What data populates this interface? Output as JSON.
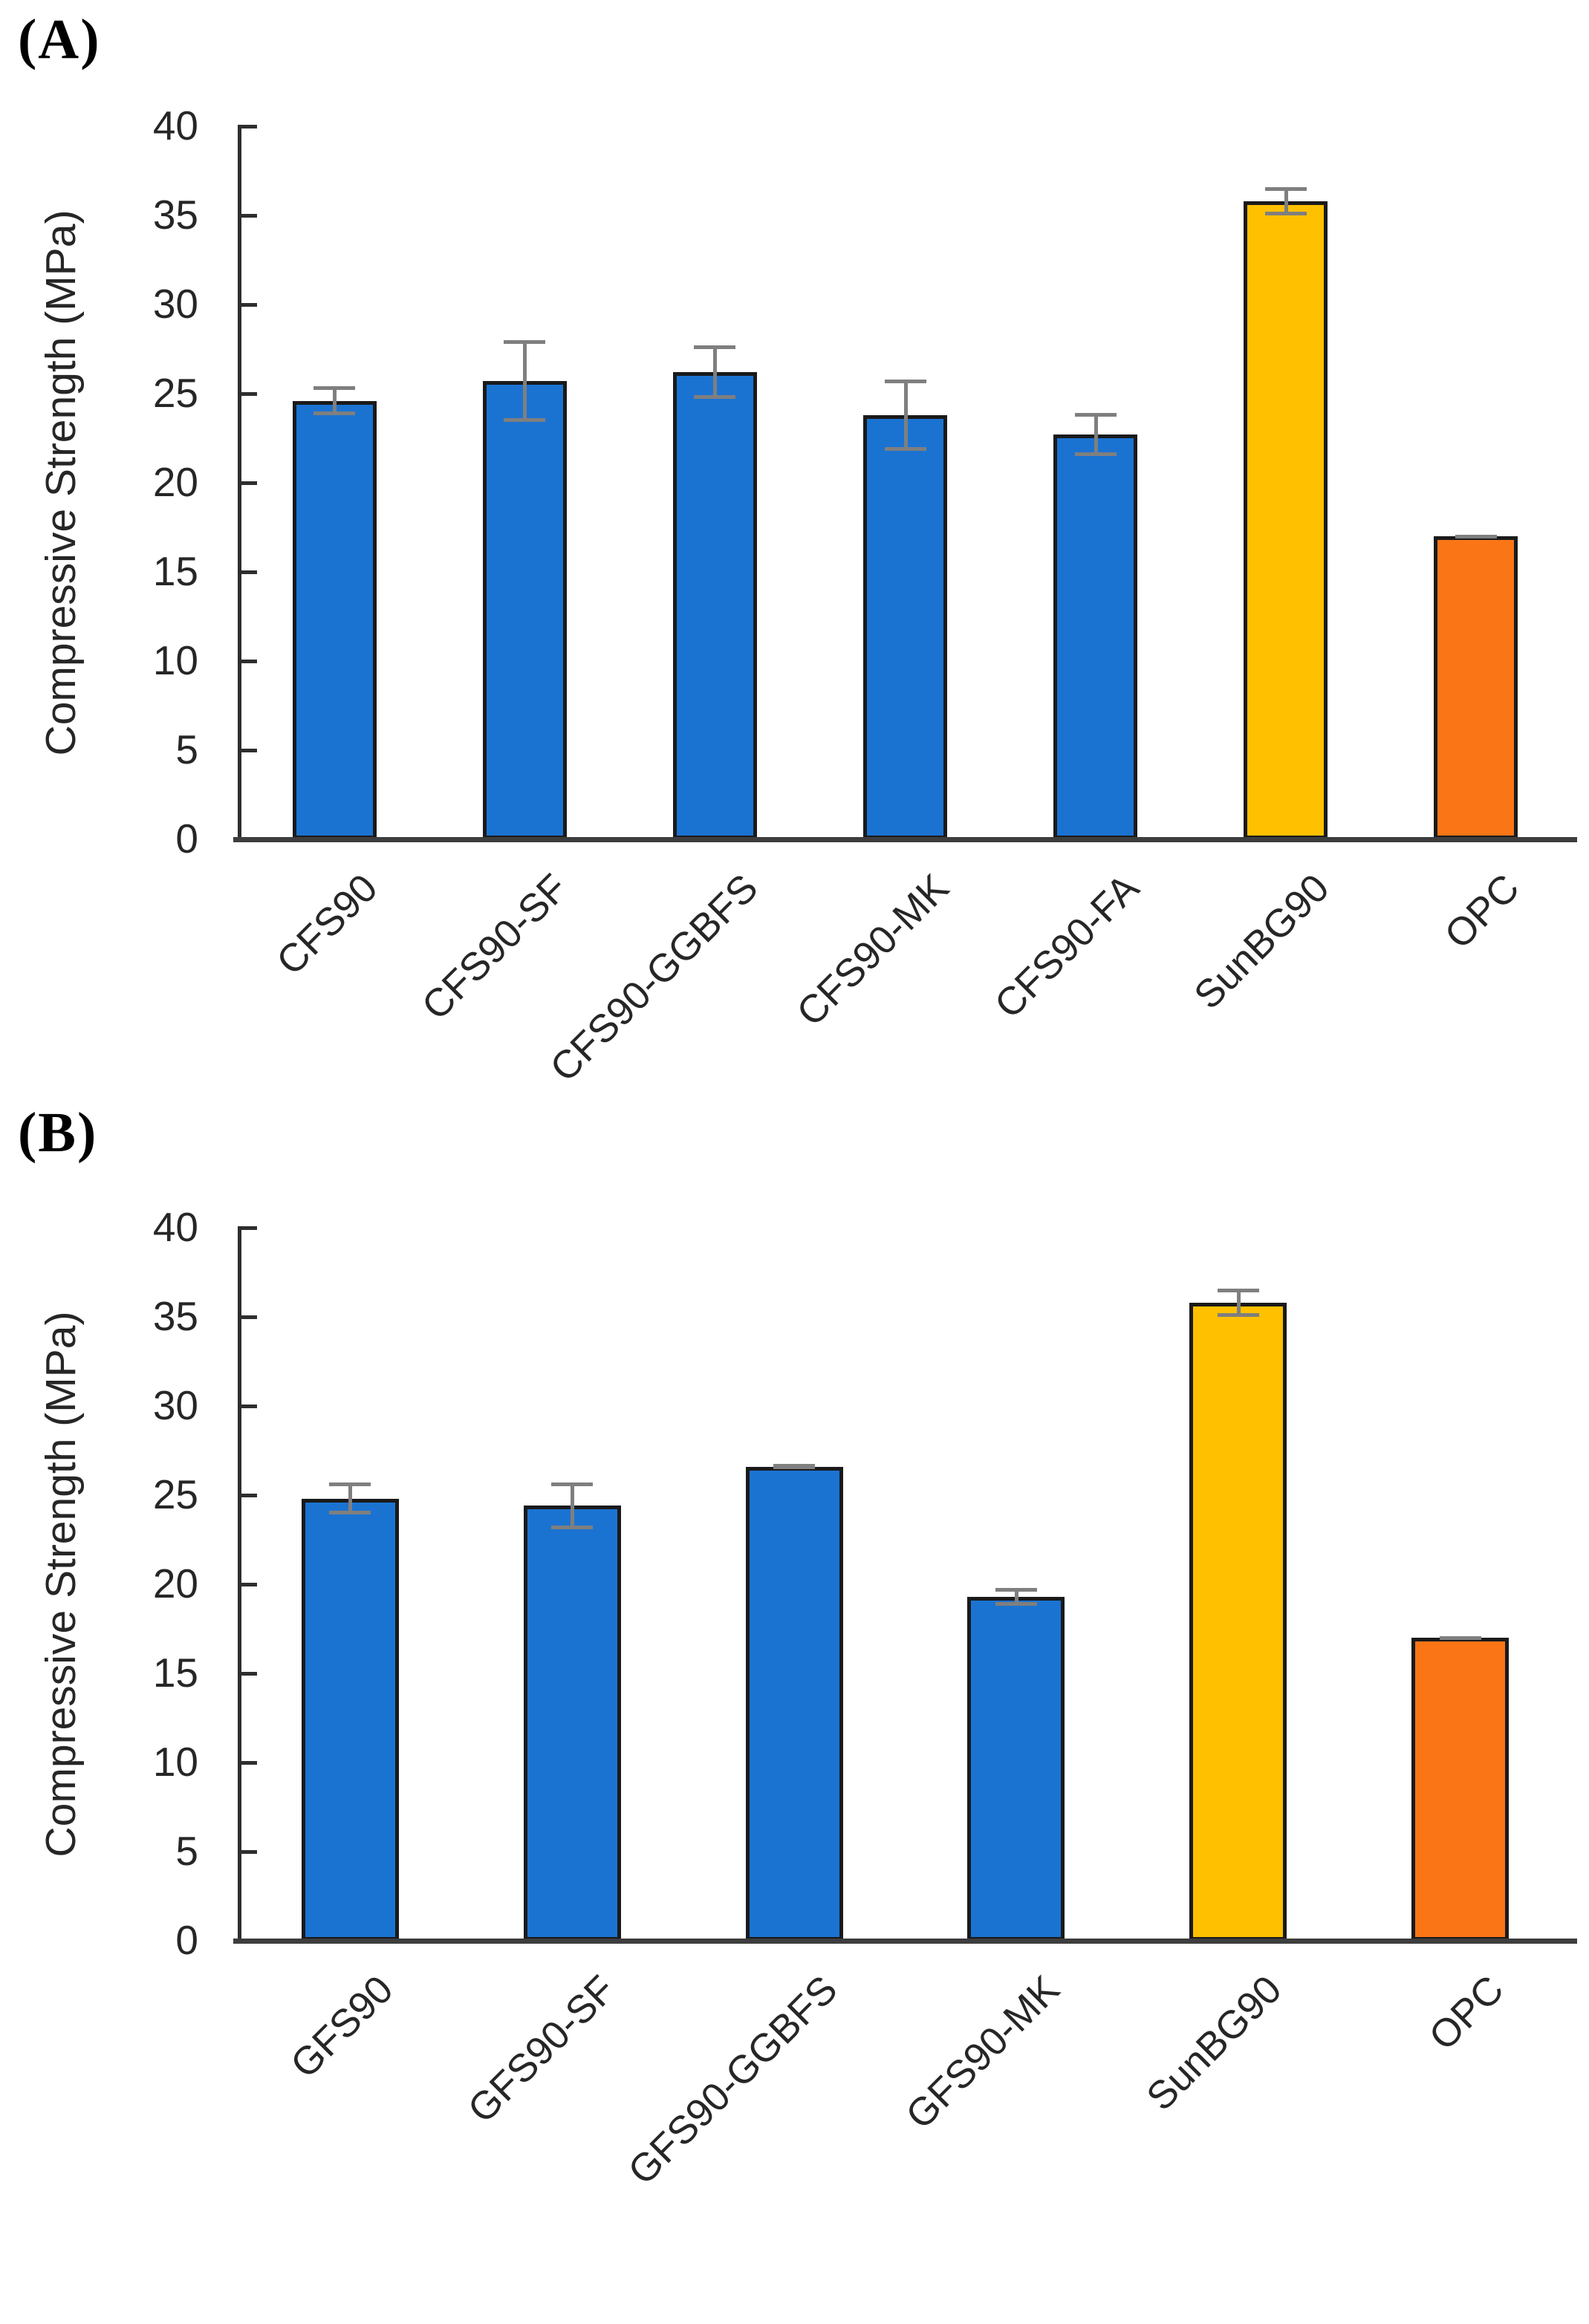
{
  "panels": [
    {
      "label": "(A)"
    },
    {
      "label": "(B)"
    }
  ],
  "palette": {
    "bar_blue": "#1b73d1",
    "bar_gold": "#ffc000",
    "bar_orange": "#f97516",
    "bar_border": "#1a1a1a",
    "error_bar": "#7f7f7f",
    "axis": "#2e2e2e",
    "text": "#262626"
  },
  "chart_data": [
    {
      "type": "bar",
      "panel": "(A)",
      "title": "",
      "xlabel": "",
      "ylabel": "Compressive Strength (MPa)",
      "ylim": [
        0,
        40
      ],
      "ytick_step": 5,
      "ytick_labels": [
        "0",
        "5",
        "10",
        "15",
        "20",
        "25",
        "30",
        "35",
        "40"
      ],
      "grid": false,
      "legend": "none",
      "categories": [
        "CFS90",
        "CFS90-SF",
        "CFS90-GGBFS",
        "CFS90-MK",
        "CFS90-FA",
        "SunBG90",
        "OPC"
      ],
      "values": [
        24.6,
        25.7,
        26.2,
        23.8,
        22.7,
        35.8,
        17.0
      ],
      "errors": [
        0.8,
        2.3,
        1.5,
        2.0,
        1.2,
        0.8,
        0.07
      ],
      "bar_colors": [
        "#1b73d1",
        "#1b73d1",
        "#1b73d1",
        "#1b73d1",
        "#1b73d1",
        "#ffc000",
        "#f97516"
      ]
    },
    {
      "type": "bar",
      "panel": "(B)",
      "title": "",
      "xlabel": "",
      "ylabel": "Compressive Strength (MPa)",
      "ylim": [
        0,
        40
      ],
      "ytick_step": 5,
      "ytick_labels": [
        "0",
        "5",
        "10",
        "15",
        "20",
        "25",
        "30",
        "35",
        "40"
      ],
      "grid": false,
      "legend": "none",
      "categories": [
        "GFS90",
        "GFS90-SF",
        "GFS90-GGBFS",
        "GFS90-MK",
        "SunBG90",
        "OPC"
      ],
      "values": [
        24.8,
        24.4,
        26.6,
        19.3,
        35.8,
        17.0
      ],
      "errors": [
        0.9,
        1.3,
        0.15,
        0.5,
        0.8,
        0.07
      ],
      "bar_colors": [
        "#1b73d1",
        "#1b73d1",
        "#1b73d1",
        "#1b73d1",
        "#ffc000",
        "#f97516"
      ]
    }
  ]
}
